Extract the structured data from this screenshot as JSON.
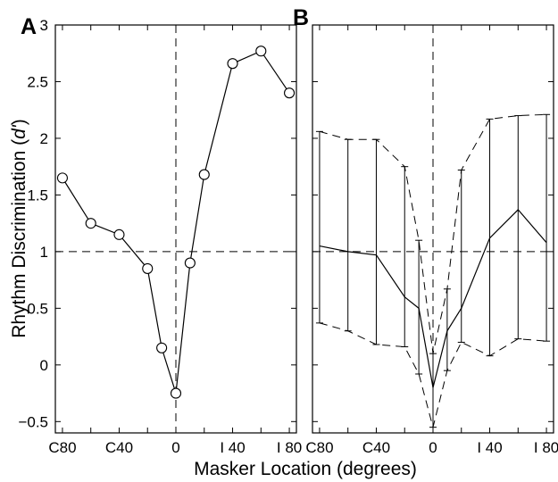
{
  "chart_data": [
    {
      "panel_label": "A",
      "type": "line",
      "xlabel": "Masker Location (degrees)",
      "ylabel_prefix": "Rhythm Discrimination (",
      "ylabel_italic": "d'",
      "ylabel_suffix": ")",
      "xlim": [
        -85,
        85
      ],
      "ylim": [
        -0.6,
        3
      ],
      "yticks": [
        -0.5,
        0,
        0.5,
        1,
        1.5,
        2,
        2.5,
        3
      ],
      "ytick_labels": [
        "−0.5",
        "0",
        "0.5",
        "1",
        "1.5",
        "2",
        "2.5",
        "3"
      ],
      "xticks": [
        -80,
        -60,
        -40,
        -20,
        0,
        20,
        40,
        60,
        80
      ],
      "xtick_labels": [
        {
          "x": -80,
          "label": "C80"
        },
        {
          "x": -40,
          "label": "C40"
        },
        {
          "x": 0,
          "label": "0"
        },
        {
          "x": 40,
          "label": "I 40"
        },
        {
          "x": 80,
          "label": "I 80"
        }
      ],
      "reference_lines": {
        "horizontal_y": 1,
        "vertical_x": 0,
        "style": "dashed"
      },
      "series": [
        {
          "marker": "open-circle",
          "x": [
            -80,
            -60,
            -40,
            -20,
            -10,
            0,
            10,
            20,
            40,
            60,
            80
          ],
          "y": [
            1.65,
            1.25,
            1.15,
            0.85,
            0.15,
            -0.25,
            0.9,
            1.68,
            2.66,
            2.77,
            2.4
          ]
        }
      ]
    },
    {
      "panel_label": "B",
      "type": "line",
      "xlim": [
        -85,
        85
      ],
      "ylim": [
        -0.6,
        3
      ],
      "yticks": [
        -0.5,
        0,
        0.5,
        1,
        1.5,
        2,
        2.5,
        3
      ],
      "xticks": [
        -80,
        -60,
        -40,
        -20,
        0,
        20,
        40,
        60,
        80
      ],
      "xtick_labels": [
        {
          "x": -80,
          "label": "C80"
        },
        {
          "x": -40,
          "label": "C40"
        },
        {
          "x": 0,
          "label": "0"
        },
        {
          "x": 40,
          "label": "I 40"
        },
        {
          "x": 80,
          "label": "I 80"
        }
      ],
      "reference_lines": {
        "horizontal_y": 1,
        "vertical_x": 0,
        "style": "dashed"
      },
      "series": [
        {
          "style": "solid",
          "error_bars": true,
          "x": [
            -80,
            -60,
            -40,
            -20,
            -10,
            0,
            10,
            20,
            40,
            60,
            80
          ],
          "y": [
            1.05,
            1.0,
            0.97,
            0.6,
            0.5,
            -0.2,
            0.3,
            0.5,
            1.12,
            1.37,
            1.08
          ],
          "upper": [
            2.06,
            1.99,
            1.99,
            1.75,
            1.1,
            0.1,
            0.67,
            1.72,
            2.17,
            2.2,
            2.21
          ],
          "lower": [
            0.37,
            0.3,
            0.18,
            0.16,
            -0.08,
            -0.55,
            -0.05,
            0.2,
            0.08,
            0.23,
            0.21
          ]
        }
      ],
      "bounds_style": "dashed"
    }
  ]
}
